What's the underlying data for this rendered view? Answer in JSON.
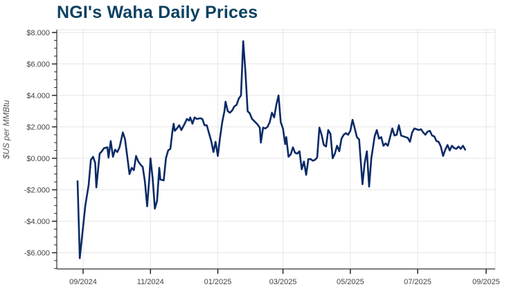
{
  "chart_data": {
    "type": "line",
    "title": "NGI's Waha Daily Prices",
    "xlabel": "",
    "ylabel": "$US per MMBtu",
    "ylim": [
      -7.0,
      8.2
    ],
    "yticks": [
      "$8.000",
      "$6.000",
      "$4.000",
      "$2.000",
      "$0.000",
      "-$2.000",
      "-$4.000",
      "-$6.000"
    ],
    "ytick_values": [
      8,
      6,
      4,
      2,
      0,
      -2,
      -4,
      -6
    ],
    "xticks": [
      "09/2024",
      "11/2024",
      "01/2025",
      "03/2025",
      "05/2025",
      "07/2025",
      "09/2025"
    ],
    "grid": true,
    "legend": null,
    "line_color": "#0a2a66",
    "series": [
      {
        "name": "Waha Daily Price",
        "points": [
          [
            "2024-08-27",
            -1.45
          ],
          [
            "2024-08-29",
            -6.35
          ],
          [
            "2024-09-03",
            -3.0
          ],
          [
            "2024-09-06",
            -1.7
          ],
          [
            "2024-09-08",
            -0.1
          ],
          [
            "2024-09-10",
            0.1
          ],
          [
            "2024-09-12",
            -0.3
          ],
          [
            "2024-09-13",
            -1.85
          ],
          [
            "2024-09-16",
            0.3
          ],
          [
            "2024-09-18",
            0.45
          ],
          [
            "2024-09-20",
            0.65
          ],
          [
            "2024-09-23",
            0.7
          ],
          [
            "2024-09-24",
            0.05
          ],
          [
            "2024-09-26",
            1.1
          ],
          [
            "2024-09-28",
            0.1
          ],
          [
            "2024-09-30",
            0.55
          ],
          [
            "2024-10-02",
            0.4
          ],
          [
            "2024-10-04",
            0.7
          ],
          [
            "2024-10-07",
            1.65
          ],
          [
            "2024-10-09",
            1.2
          ],
          [
            "2024-10-11",
            0.1
          ],
          [
            "2024-10-13",
            -1.0
          ],
          [
            "2024-10-15",
            -0.6
          ],
          [
            "2024-10-17",
            -0.75
          ],
          [
            "2024-10-19",
            0.15
          ],
          [
            "2024-10-21",
            -0.2
          ],
          [
            "2024-10-23",
            -0.4
          ],
          [
            "2024-10-25",
            -0.55
          ],
          [
            "2024-10-27",
            -1.5
          ],
          [
            "2024-10-29",
            -3.05
          ],
          [
            "2024-10-31",
            -1.2
          ],
          [
            "2024-11-01",
            0.0
          ],
          [
            "2024-11-03",
            -1.3
          ],
          [
            "2024-11-05",
            -3.2
          ],
          [
            "2024-11-07",
            -2.7
          ],
          [
            "2024-11-09",
            -0.6
          ],
          [
            "2024-11-10",
            -1.35
          ],
          [
            "2024-11-13",
            -1.4
          ],
          [
            "2024-11-15",
            0.0
          ],
          [
            "2024-11-17",
            0.5
          ],
          [
            "2024-11-19",
            0.6
          ],
          [
            "2024-11-21",
            1.8
          ],
          [
            "2024-11-22",
            2.2
          ],
          [
            "2024-11-23",
            1.75
          ],
          [
            "2024-11-25",
            1.9
          ],
          [
            "2024-11-27",
            2.1
          ],
          [
            "2024-11-29",
            1.8
          ],
          [
            "2024-12-02",
            2.2
          ],
          [
            "2024-12-04",
            2.5
          ],
          [
            "2024-12-06",
            2.4
          ],
          [
            "2024-12-07",
            2.6
          ],
          [
            "2024-12-09",
            2.2
          ],
          [
            "2024-12-11",
            2.6
          ],
          [
            "2024-12-13",
            2.5
          ],
          [
            "2024-12-16",
            2.55
          ],
          [
            "2024-12-18",
            2.5
          ],
          [
            "2024-12-20",
            2.1
          ],
          [
            "2024-12-22",
            2.1
          ],
          [
            "2024-12-24",
            1.6
          ],
          [
            "2024-12-26",
            1.1
          ],
          [
            "2024-12-28",
            0.4
          ],
          [
            "2024-12-30",
            1.05
          ],
          [
            "2025-01-01",
            0.15
          ],
          [
            "2025-01-03",
            1.3
          ],
          [
            "2025-01-05",
            2.3
          ],
          [
            "2025-01-07",
            3.0
          ],
          [
            "2025-01-08",
            3.6
          ],
          [
            "2025-01-10",
            3.0
          ],
          [
            "2025-01-12",
            2.9
          ],
          [
            "2025-01-14",
            3.05
          ],
          [
            "2025-01-16",
            3.3
          ],
          [
            "2025-01-18",
            3.4
          ],
          [
            "2025-01-20",
            3.8
          ],
          [
            "2025-01-22",
            4.0
          ],
          [
            "2025-01-24",
            7.45
          ],
          [
            "2025-01-26",
            5.5
          ],
          [
            "2025-01-28",
            3.0
          ],
          [
            "2025-01-30",
            2.85
          ],
          [
            "2025-02-01",
            2.5
          ],
          [
            "2025-02-04",
            2.3
          ],
          [
            "2025-02-06",
            2.15
          ],
          [
            "2025-02-08",
            1.95
          ],
          [
            "2025-02-09",
            1.0
          ],
          [
            "2025-02-11",
            1.95
          ],
          [
            "2025-02-13",
            1.9
          ],
          [
            "2025-02-15",
            2.0
          ],
          [
            "2025-02-17",
            2.3
          ],
          [
            "2025-02-19",
            2.9
          ],
          [
            "2025-02-21",
            2.6
          ],
          [
            "2025-02-23",
            3.4
          ],
          [
            "2025-02-25",
            4.0
          ],
          [
            "2025-02-27",
            2.3
          ],
          [
            "2025-03-01",
            1.9
          ],
          [
            "2025-03-03",
            0.9
          ],
          [
            "2025-03-04",
            1.35
          ],
          [
            "2025-03-06",
            0.1
          ],
          [
            "2025-03-08",
            0.25
          ],
          [
            "2025-03-10",
            0.7
          ],
          [
            "2025-03-12",
            0.35
          ],
          [
            "2025-03-14",
            0.3
          ],
          [
            "2025-03-16",
            0.45
          ],
          [
            "2025-03-18",
            -0.7
          ],
          [
            "2025-03-20",
            -0.2
          ],
          [
            "2025-03-22",
            -1.05
          ],
          [
            "2025-03-24",
            -0.05
          ],
          [
            "2025-03-26",
            -0.05
          ],
          [
            "2025-03-28",
            -0.15
          ],
          [
            "2025-03-30",
            -0.1
          ],
          [
            "2025-04-01",
            0.05
          ],
          [
            "2025-04-03",
            1.95
          ],
          [
            "2025-04-05",
            1.5
          ],
          [
            "2025-04-07",
            0.85
          ],
          [
            "2025-04-09",
            0.75
          ],
          [
            "2025-04-11",
            1.8
          ],
          [
            "2025-04-13",
            1.55
          ],
          [
            "2025-04-15",
            0.0
          ],
          [
            "2025-04-17",
            0.3
          ],
          [
            "2025-04-19",
            0.8
          ],
          [
            "2025-04-21",
            0.45
          ],
          [
            "2025-04-23",
            1.25
          ],
          [
            "2025-04-25",
            1.5
          ],
          [
            "2025-04-27",
            1.6
          ],
          [
            "2025-04-29",
            1.5
          ],
          [
            "2025-05-01",
            1.75
          ],
          [
            "2025-05-03",
            2.45
          ],
          [
            "2025-05-05",
            1.9
          ],
          [
            "2025-05-07",
            1.35
          ],
          [
            "2025-05-09",
            1.2
          ],
          [
            "2025-05-11",
            -0.7
          ],
          [
            "2025-05-12",
            -1.65
          ],
          [
            "2025-05-14",
            -0.3
          ],
          [
            "2025-05-16",
            0.45
          ],
          [
            "2025-05-18",
            -1.8
          ],
          [
            "2025-05-20",
            0.0
          ],
          [
            "2025-05-23",
            1.4
          ],
          [
            "2025-05-25",
            1.8
          ],
          [
            "2025-05-27",
            1.25
          ],
          [
            "2025-05-29",
            1.35
          ],
          [
            "2025-05-31",
            0.8
          ],
          [
            "2025-06-02",
            0.95
          ],
          [
            "2025-06-04",
            0.8
          ],
          [
            "2025-06-06",
            1.35
          ],
          [
            "2025-06-08",
            1.9
          ],
          [
            "2025-06-10",
            1.45
          ],
          [
            "2025-06-12",
            1.5
          ],
          [
            "2025-06-14",
            2.1
          ],
          [
            "2025-06-16",
            1.45
          ],
          [
            "2025-06-18",
            1.4
          ],
          [
            "2025-06-20",
            1.35
          ],
          [
            "2025-06-22",
            1.3
          ],
          [
            "2025-06-24",
            1.05
          ],
          [
            "2025-06-26",
            1.65
          ],
          [
            "2025-06-28",
            1.9
          ],
          [
            "2025-06-30",
            1.85
          ],
          [
            "2025-07-02",
            1.8
          ],
          [
            "2025-07-04",
            1.85
          ],
          [
            "2025-07-06",
            1.65
          ],
          [
            "2025-07-08",
            1.5
          ],
          [
            "2025-07-10",
            1.7
          ],
          [
            "2025-07-12",
            1.75
          ],
          [
            "2025-07-14",
            1.45
          ],
          [
            "2025-07-16",
            1.4
          ],
          [
            "2025-07-18",
            1.1
          ],
          [
            "2025-07-20",
            1.05
          ],
          [
            "2025-07-22",
            0.75
          ],
          [
            "2025-07-24",
            0.15
          ],
          [
            "2025-07-26",
            0.55
          ],
          [
            "2025-07-28",
            0.85
          ],
          [
            "2025-07-30",
            0.5
          ],
          [
            "2025-08-01",
            0.8
          ],
          [
            "2025-08-03",
            0.65
          ],
          [
            "2025-08-05",
            0.6
          ],
          [
            "2025-08-07",
            0.75
          ],
          [
            "2025-08-09",
            0.6
          ],
          [
            "2025-08-11",
            0.8
          ],
          [
            "2025-08-13",
            0.55
          ]
        ]
      }
    ]
  }
}
